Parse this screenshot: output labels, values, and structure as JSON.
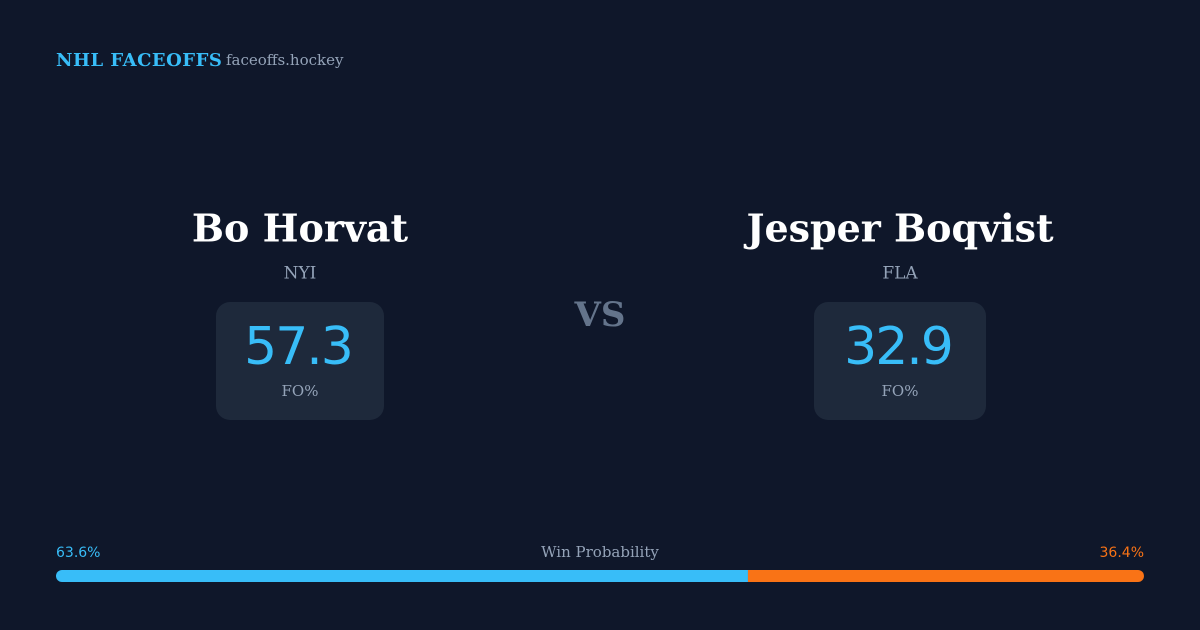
{
  "header": {
    "brand": "NHL FACEOFFS",
    "site": "faceoffs.hockey"
  },
  "players": [
    {
      "name": "Bo Horvat",
      "team": "NYI",
      "fo_pct": 57.3,
      "fo_label": "FO%"
    },
    {
      "name": "Jesper Boqvist",
      "team": "FLA",
      "fo_pct": 32.9,
      "fo_label": "FO%"
    }
  ],
  "vs": "VS",
  "win_probability": {
    "label": "Win Probability",
    "values": [
      63.6,
      36.4
    ],
    "value_labels": [
      "63.6%",
      "36.4%"
    ],
    "colors": [
      "#38bdf8",
      "#f97316"
    ]
  }
}
